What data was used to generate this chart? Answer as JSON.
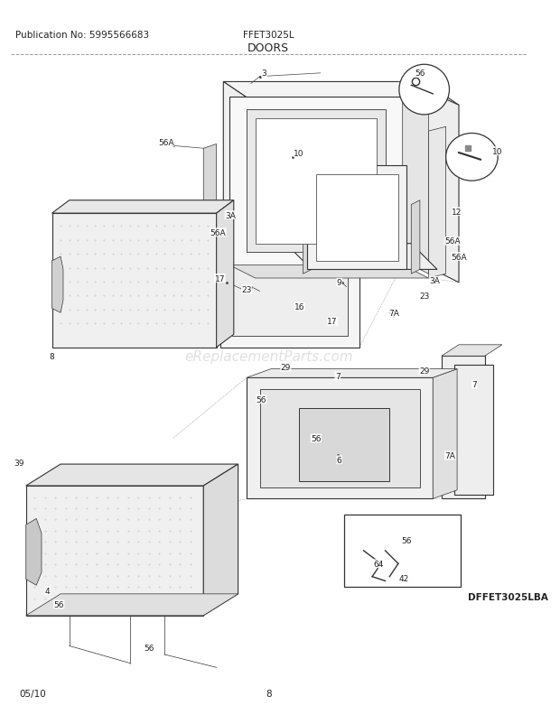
{
  "pub_no": "Publication No: 5995566683",
  "model": "FFET3025L",
  "title": "DOORS",
  "diagram_id": "DFFET3025LBA",
  "date": "05/10",
  "page": "8",
  "bg_color": "#ffffff",
  "text_color": "#222222",
  "line_color": "#333333",
  "header_fontsize": 7.5,
  "title_fontsize": 9,
  "label_fontsize": 6.5,
  "footer_fontsize": 7.5,
  "watermark": "eReplacementParts.com",
  "watermark_color": "#cccccc",
  "watermark_fontsize": 11
}
